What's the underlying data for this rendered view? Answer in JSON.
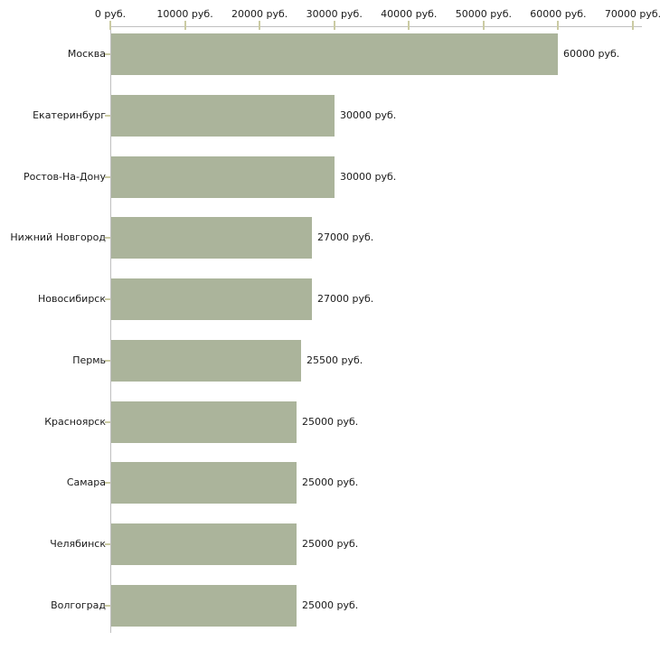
{
  "chart_data": {
    "type": "bar",
    "orientation": "horizontal",
    "title": "",
    "xlabel": "руб.",
    "ylabel": "",
    "categories": [
      "Москва",
      "Екатеринбург",
      "Ростов-На-Дону",
      "Нижний Новгород",
      "Новосибирск",
      "Пермь",
      "Красноярск",
      "Самара",
      "Челябинск",
      "Волгоград"
    ],
    "values": [
      60000,
      30000,
      30000,
      27000,
      27000,
      25500,
      25000,
      25000,
      25000,
      25000
    ],
    "value_labels": [
      "60000 руб.",
      "30000 руб.",
      "30000 руб.",
      "27000 руб.",
      "27000 руб.",
      "25500 руб.",
      "25000 руб.",
      "25000 руб.",
      "25000 руб.",
      "25000 руб."
    ],
    "x_ticks": [
      0,
      10000,
      20000,
      30000,
      40000,
      50000,
      60000,
      70000
    ],
    "x_tick_labels": [
      "0 руб.",
      "10000 руб.",
      "20000 руб.",
      "30000 руб.",
      "40000 руб.",
      "50000 руб.",
      "60000 руб.",
      "70000 руб."
    ],
    "xlim": [
      0,
      70000
    ],
    "grid": false,
    "legend": "none",
    "axis_position": "top"
  },
  "style": {
    "bar_color": "#abb49b",
    "axis_line_color": "#c0c0c0",
    "tick_color": "#cbcba3",
    "text_color": "#1a1a1a",
    "background": "#ffffff"
  }
}
